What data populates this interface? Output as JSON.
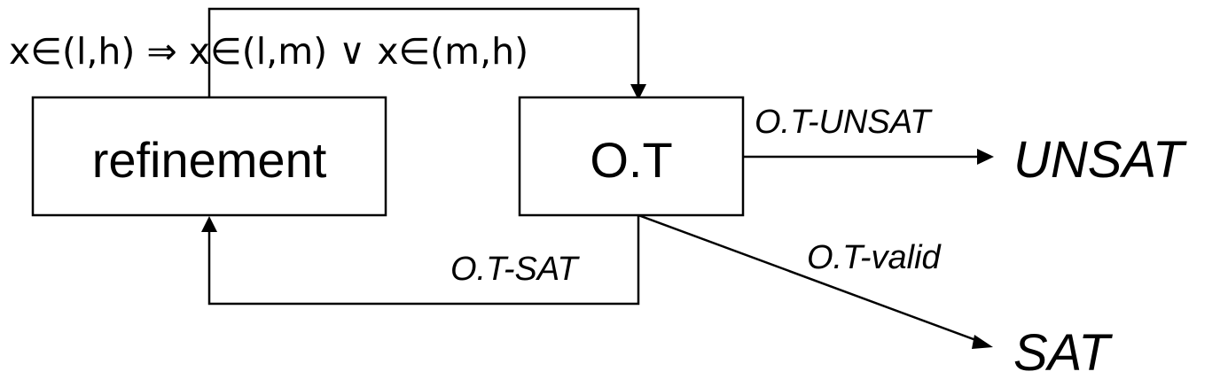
{
  "nodes": {
    "refinement": "refinement",
    "ot": "O.T",
    "unsat": "UNSAT",
    "sat": "SAT"
  },
  "edges": {
    "refinement_to_ot": "x∈(l,h) ⇒ x∈(l,m) ∨ x∈(m,h)",
    "ot_to_unsat": "O.T-UNSAT",
    "ot_to_refinement": "O.T-SAT",
    "ot_to_sat": "O.T-valid"
  }
}
